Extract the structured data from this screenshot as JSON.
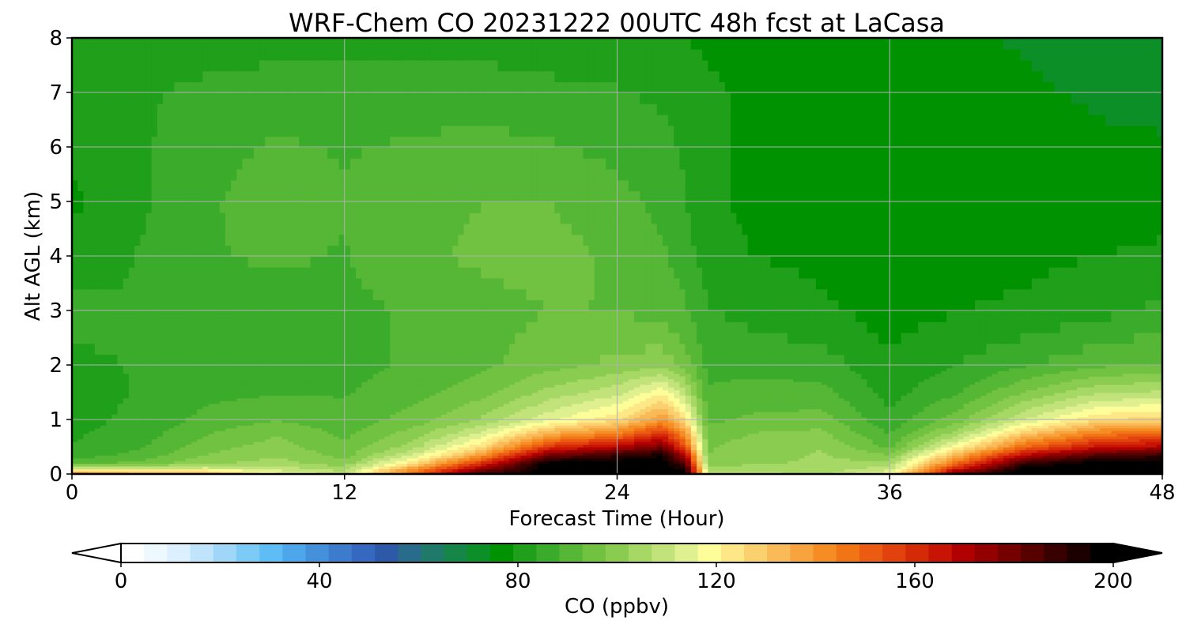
{
  "chart_data": {
    "type": "heatmap",
    "title": "WRF-Chem CO  20231222 00UTC 48h fcst at LaCasa",
    "xlabel": "Forecast Time (Hour)",
    "ylabel": "Alt AGL (km)",
    "x_ticks": [
      "0",
      "12",
      "24",
      "36",
      "48"
    ],
    "y_ticks": [
      "0",
      "1",
      "2",
      "3",
      "4",
      "5",
      "6",
      "7",
      "8"
    ],
    "xlim": [
      0,
      48
    ],
    "ylim": [
      0,
      8
    ],
    "grid": true,
    "x": [
      0,
      3,
      6,
      9,
      12,
      15,
      18,
      21,
      24,
      26,
      27,
      28,
      30,
      33,
      36,
      39,
      42,
      45,
      48
    ],
    "y": [
      0,
      0.1,
      0.2,
      0.35,
      0.5,
      0.75,
      1.0,
      1.5,
      2.0,
      3.0,
      4.0,
      5.0,
      6.0,
      7.0,
      8.0
    ],
    "z": [
      [
        150,
        140,
        140,
        118,
        110,
        150,
        190,
        200,
        200,
        200,
        200,
        110,
        110,
        105,
        120,
        185,
        200,
        200,
        200
      ],
      [
        115,
        115,
        115,
        110,
        105,
        140,
        175,
        200,
        200,
        200,
        195,
        105,
        105,
        104,
        110,
        165,
        200,
        200,
        200
      ],
      [
        92,
        95,
        102,
        104,
        100,
        125,
        160,
        200,
        200,
        200,
        185,
        100,
        102,
        103,
        105,
        150,
        190,
        200,
        200
      ],
      [
        86,
        90,
        98,
        102,
        96,
        112,
        140,
        180,
        190,
        195,
        170,
        98,
        100,
        103,
        98,
        135,
        170,
        185,
        190
      ],
      [
        84,
        88,
        96,
        100,
        94,
        105,
        125,
        160,
        170,
        180,
        155,
        97,
        100,
        102,
        92,
        120,
        150,
        165,
        170
      ],
      [
        83,
        86,
        93,
        97,
        92,
        100,
        112,
        135,
        145,
        160,
        140,
        95,
        98,
        99,
        88,
        105,
        130,
        145,
        150
      ],
      [
        82,
        85,
        90,
        93,
        90,
        95,
        103,
        115,
        125,
        140,
        125,
        92,
        94,
        95,
        85,
        96,
        112,
        125,
        128
      ],
      [
        82,
        84,
        87,
        88,
        88,
        91,
        96,
        104,
        110,
        120,
        108,
        89,
        90,
        90,
        82,
        88,
        98,
        106,
        108
      ],
      [
        83,
        84,
        86,
        87,
        87,
        89,
        92,
        96,
        99,
        101,
        96,
        87,
        87,
        86,
        80,
        84,
        88,
        92,
        94
      ],
      [
        85,
        84,
        86,
        87,
        87,
        89,
        91,
        93,
        93,
        91,
        89,
        84,
        82,
        80,
        77,
        79,
        80,
        82,
        85
      ],
      [
        81,
        84,
        88,
        89,
        88,
        92,
        94,
        95,
        92,
        89,
        86,
        81,
        79,
        78,
        76,
        77,
        78,
        79,
        80
      ],
      [
        78,
        83,
        88,
        90,
        89,
        91,
        93,
        93,
        90,
        87,
        84,
        80,
        78,
        77,
        76,
        76,
        76,
        77,
        77
      ],
      [
        80,
        83,
        87,
        89,
        88,
        89,
        90,
        89,
        87,
        85,
        83,
        80,
        78,
        77,
        76,
        76,
        76,
        75,
        75
      ],
      [
        82,
        83,
        85,
        86,
        86,
        86,
        86,
        85,
        84,
        83,
        82,
        80,
        78,
        77,
        76,
        76,
        75,
        74,
        73
      ],
      [
        80,
        80,
        81,
        82,
        82,
        82,
        82,
        81,
        81,
        80,
        79,
        78,
        77,
        76,
        76,
        75,
        74,
        72,
        70
      ]
    ],
    "colorbar": {
      "label": "CO  (ppbv)",
      "ticks": [
        "0",
        "40",
        "80",
        "120",
        "160",
        "200"
      ],
      "range": [
        0,
        200
      ],
      "extend": "both",
      "orientation": "horizontal",
      "colors": [
        "#ffffff",
        "#eef8ff",
        "#dcf0ff",
        "#bfe4fb",
        "#a0d7f8",
        "#7ccaf6",
        "#5fbdf5",
        "#4da7ea",
        "#4490db",
        "#3d7ccd",
        "#3568c0",
        "#2d5aa8",
        "#286b8a",
        "#1f7a6a",
        "#168548",
        "#0d8f28",
        "#009200",
        "#1f9f1a",
        "#3aab2a",
        "#55b735",
        "#70c240",
        "#8acc50",
        "#a6d865",
        "#c2e37b",
        "#def08f",
        "#fdfd9a",
        "#fde786",
        "#fbd06f",
        "#f9ba57",
        "#f7a33e",
        "#f58c24",
        "#f27515",
        "#ec5b12",
        "#e2420e",
        "#d42a08",
        "#c81404",
        "#b00000",
        "#920000",
        "#740000",
        "#560000",
        "#380000",
        "#1c0000",
        "#000000"
      ]
    }
  }
}
